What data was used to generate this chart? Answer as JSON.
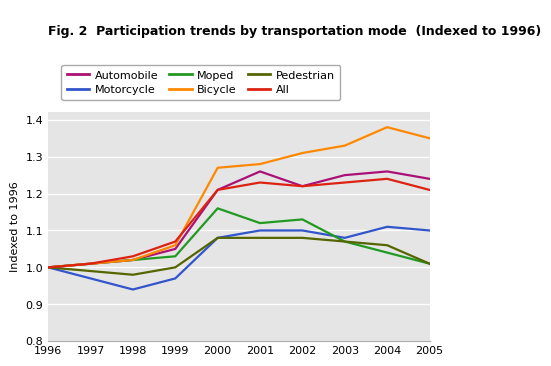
{
  "title": "Fig. 2  Participation trends by transportation mode  (Indexed to 1996)",
  "ylabel": "Indexed to 1996",
  "years": [
    1996,
    1997,
    1998,
    1999,
    2000,
    2001,
    2002,
    2003,
    2004,
    2005
  ],
  "series_order": [
    "Automobile",
    "Motorcycle",
    "Moped",
    "Bicycle",
    "Pedestrian",
    "All"
  ],
  "series": {
    "Automobile": {
      "color": "#aa1177",
      "values": [
        1.0,
        1.01,
        1.02,
        1.05,
        1.21,
        1.26,
        1.22,
        1.25,
        1.26,
        1.24
      ]
    },
    "Motorcycle": {
      "color": "#3355cc",
      "values": [
        1.0,
        0.97,
        0.94,
        0.97,
        1.08,
        1.1,
        1.1,
        1.08,
        1.11,
        1.1
      ]
    },
    "Moped": {
      "color": "#229922",
      "values": [
        1.0,
        1.01,
        1.02,
        1.03,
        1.16,
        1.12,
        1.13,
        1.07,
        1.04,
        1.01
      ]
    },
    "Bicycle": {
      "color": "#ff8800",
      "values": [
        1.0,
        1.01,
        1.02,
        1.06,
        1.27,
        1.28,
        1.31,
        1.33,
        1.38,
        1.35
      ]
    },
    "Pedestrian": {
      "color": "#556600",
      "values": [
        1.0,
        0.99,
        0.98,
        1.0,
        1.08,
        1.08,
        1.08,
        1.07,
        1.06,
        1.01
      ]
    },
    "All": {
      "color": "#dd2211",
      "values": [
        1.0,
        1.01,
        1.03,
        1.07,
        1.21,
        1.23,
        1.22,
        1.23,
        1.24,
        1.21
      ]
    }
  },
  "ylim": [
    0.8,
    1.42
  ],
  "yticks": [
    0.8,
    0.9,
    1.0,
    1.1,
    1.2,
    1.3,
    1.4
  ],
  "bg_color": "#e5e5e5",
  "legend_order": [
    "Automobile",
    "Motorcycle",
    "Moped",
    "Bicycle",
    "Pedestrian",
    "All"
  ]
}
